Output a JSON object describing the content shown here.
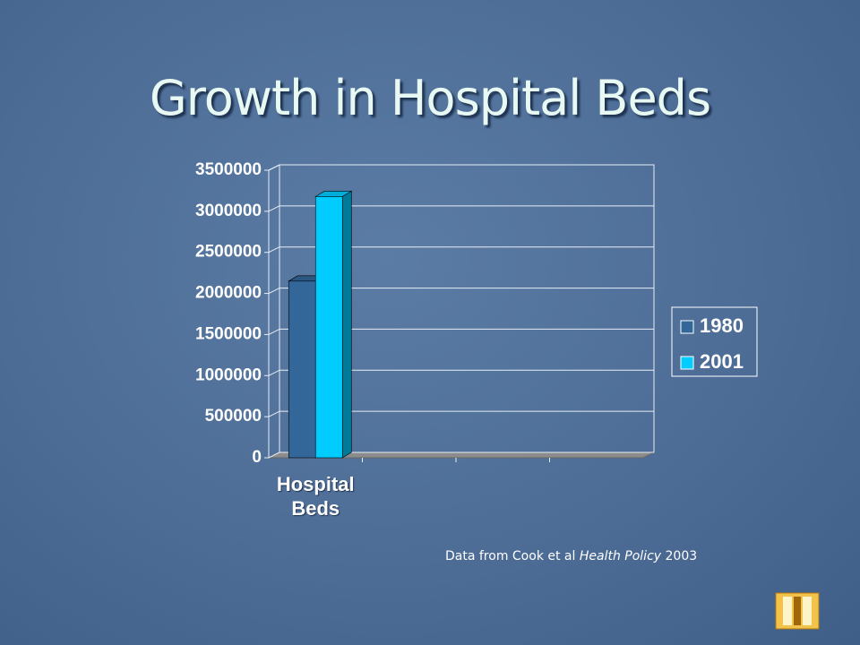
{
  "chart_data": {
    "type": "bar3d",
    "title": "Growth in Hospital Beds",
    "categories": [
      "Hospital Beds",
      null,
      null,
      null
    ],
    "series": [
      {
        "name": "1980",
        "color": "#336699",
        "values": [
          2150000,
          null,
          null,
          null
        ]
      },
      {
        "name": "2001",
        "color": "#00ccff",
        "values": [
          3180000,
          null,
          null,
          null
        ]
      }
    ],
    "ylim": [
      0,
      3500000
    ],
    "yticks": [
      0,
      500000,
      1000000,
      1500000,
      2000000,
      2500000,
      3000000,
      3500000
    ],
    "grid": true,
    "legend": "right",
    "source": {
      "text": "Data from Cook et al",
      "journal": "Health Policy",
      "year": "2003"
    }
  }
}
